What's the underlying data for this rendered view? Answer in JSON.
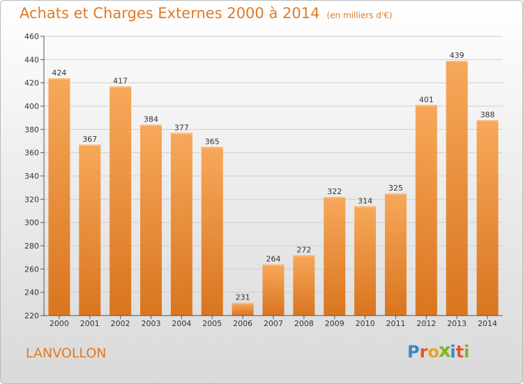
{
  "header": {
    "title": "Achats et Charges Externes 2000 à 2014",
    "subtitle": "(en milliers d'€)"
  },
  "footer": {
    "town": "LANVOLLON",
    "logo_letters": [
      "P",
      "r",
      "o",
      "x",
      "i",
      "t",
      "i"
    ],
    "logo_colors": [
      "#3a86c8",
      "#e8542c",
      "#f0a020",
      "#7ab828",
      "#3a86c8",
      "#e8542c",
      "#7ab828"
    ]
  },
  "chart_data": {
    "type": "bar",
    "title": "Achats et Charges Externes 2000 à 2014",
    "subtitle": "(en milliers d'€)",
    "categories": [
      "2000",
      "2001",
      "2002",
      "2003",
      "2004",
      "2005",
      "2006",
      "2007",
      "2008",
      "2009",
      "2010",
      "2011",
      "2012",
      "2013",
      "2014"
    ],
    "values": [
      424,
      367,
      417,
      384,
      377,
      365,
      231,
      264,
      272,
      322,
      314,
      325,
      401,
      439,
      388
    ],
    "ylim": [
      220,
      460
    ],
    "yticks": [
      220,
      240,
      260,
      280,
      300,
      320,
      340,
      360,
      380,
      400,
      420,
      440,
      460
    ],
    "grid": true,
    "bar_color_top": "#f7a85a",
    "bar_color_bottom": "#d9751f"
  }
}
